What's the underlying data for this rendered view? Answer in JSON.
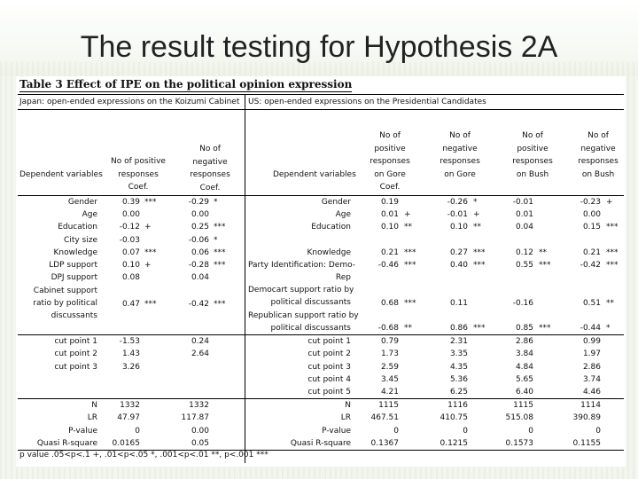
{
  "slide_title": "The result testing for Hypothesis 2A",
  "table_title": "Table 3  Effect of IPE on the political opinion expression",
  "japan_header": "Japan: open-ended expressions on the Koizumi Cabinet",
  "us_header": "US: open-ended expressions on the Presidential Candidates",
  "left_columns": {
    "dep_var": "Dependent variables",
    "pos": "No of positive\nresponses\nCoef.",
    "neg": "No of\nnegative\nresponses\nCoef."
  },
  "right_columns": {
    "dep_var": "Dependent variables",
    "gore_pos": "No of\npositive\nresponses\non Gore\nCoef.",
    "gore_neg": "No of\nnegative\nresponses\non Gore",
    "bush_pos": "No of\npositive\nresponses\non Bush",
    "bush_neg": "No of\nnegative\nresponses\non Bush"
  },
  "left_rows": [
    {
      "label": "Gender",
      "pos": "0.39",
      "pos_sig": "***",
      "neg": "-0.29",
      "neg_sig": "*"
    },
    {
      "label": "Age",
      "pos": "0.00",
      "pos_sig": "",
      "neg": "0.00",
      "neg_sig": ""
    },
    {
      "label": "Education",
      "pos": "-0.12",
      "pos_sig": "+",
      "neg": "0.25",
      "neg_sig": "***"
    },
    {
      "label": "City size",
      "pos": "-0.03",
      "pos_sig": "",
      "neg": "-0.06",
      "neg_sig": "*"
    },
    {
      "label": "Knowledge",
      "pos": "0.07",
      "pos_sig": "***",
      "neg": "0.06",
      "neg_sig": "***"
    },
    {
      "label": "LDP support",
      "pos": "0.10",
      "pos_sig": "+",
      "neg": "-0.28",
      "neg_sig": "***"
    },
    {
      "label": "DPJ support",
      "pos": "0.08",
      "pos_sig": "",
      "neg": "0.04",
      "neg_sig": ""
    }
  ],
  "left_cabinet": {
    "label": "Cabinet support\nratio by political\ndiscussants",
    "pos": "0.47",
    "pos_sig": "***",
    "neg": "-0.42",
    "neg_sig": "***"
  },
  "left_cuts": [
    {
      "label": "cut point 1",
      "pos": "-1.53",
      "neg": "0.24"
    },
    {
      "label": "cut point 2",
      "pos": "1.43",
      "neg": "2.64"
    },
    {
      "label": "cut point 3",
      "pos": "3.26",
      "neg": ""
    }
  ],
  "left_stats": [
    {
      "label": "N",
      "pos": "1332",
      "neg": "1332"
    },
    {
      "label": "LR",
      "pos": "47.97",
      "neg": "117.87"
    },
    {
      "label": "P-value",
      "pos": "0",
      "neg": "0.00"
    },
    {
      "label": "Quasi R-square",
      "pos": "0.0165",
      "neg": "0.05"
    }
  ],
  "right_rows": [
    {
      "label": "Gender",
      "v1": "0.19",
      "s1": "",
      "v2": "-0.26",
      "s2": "*",
      "v3": "-0.01",
      "s3": "",
      "v4": "-0.23",
      "s4": "+"
    },
    {
      "label": "Age",
      "v1": "0.01",
      "s1": "+",
      "v2": "-0.01",
      "s2": "+",
      "v3": "0.01",
      "s3": "",
      "v4": "0.00",
      "s4": ""
    },
    {
      "label": "Education",
      "v1": "0.10",
      "s1": "**",
      "v2": "0.10",
      "s2": "**",
      "v3": "0.04",
      "s3": "",
      "v4": "0.15",
      "s4": "***"
    },
    {
      "label": "",
      "v1": "",
      "s1": "",
      "v2": "",
      "s2": "",
      "v3": "",
      "s3": "",
      "v4": "",
      "s4": ""
    },
    {
      "label": "Knowledge",
      "v1": "0.21",
      "s1": "***",
      "v2": "0.27",
      "s2": "***",
      "v3": "0.12",
      "s3": "**",
      "v4": "0.21",
      "s4": "***"
    },
    {
      "label": "Party Identification: Demo-\nRep",
      "v1": "-0.46",
      "s1": "***",
      "v2": "0.40",
      "s2": "***",
      "v3": "0.55",
      "s3": "***",
      "v4": "-0.42",
      "s4": "***"
    }
  ],
  "right_dem": {
    "label": "Democart support ratio by\npolitical discussants",
    "v1": "0.68",
    "s1": "***",
    "v2": "0.11",
    "s2": "",
    "v3": "-0.16",
    "s3": "",
    "v4": "0.51",
    "s4": "**"
  },
  "right_rep": {
    "label": "Republican support ratio by\npolitical discussants",
    "v1": "-0.68",
    "s1": "**",
    "v2": "0.86",
    "s2": "***",
    "v3": "0.85",
    "s3": "***",
    "v4": "-0.44",
    "s4": "*"
  },
  "right_cuts": [
    {
      "label": "cut point 1",
      "v1": "0.79",
      "v2": "2.31",
      "v3": "2.86",
      "v4": "0.99"
    },
    {
      "label": "cut point 2",
      "v1": "1.73",
      "v2": "3.35",
      "v3": "3.84",
      "v4": "1.97"
    },
    {
      "label": "cut point 3",
      "v1": "2.59",
      "v2": "4.35",
      "v3": "4.84",
      "v4": "2.86"
    },
    {
      "label": "cut point 4",
      "v1": "3.45",
      "v2": "5.36",
      "v3": "5.65",
      "v4": "3.74"
    },
    {
      "label": "cut point 5",
      "v1": "4.21",
      "v2": "6.25",
      "v3": "6.40",
      "v4": "4.46"
    }
  ],
  "right_stats": [
    {
      "label": "N",
      "v1": "1115",
      "v2": "1116",
      "v3": "1115",
      "v4": "1114"
    },
    {
      "label": "LR",
      "v1": "467.51",
      "v2": "410.75",
      "v3": "515.08",
      "v4": "390.89"
    },
    {
      "label": "P-value",
      "v1": "0",
      "v2": "0",
      "v3": "0",
      "v4": "0"
    },
    {
      "label": "Quasi R-square",
      "v1": "0.1367",
      "v2": "0.1215",
      "v3": "0.1573",
      "v4": "0.1155"
    }
  ],
  "footnote": "p value .05<p<.1 +, .01<p<.05 *, .001<p<.01 **, p<.001 ***"
}
